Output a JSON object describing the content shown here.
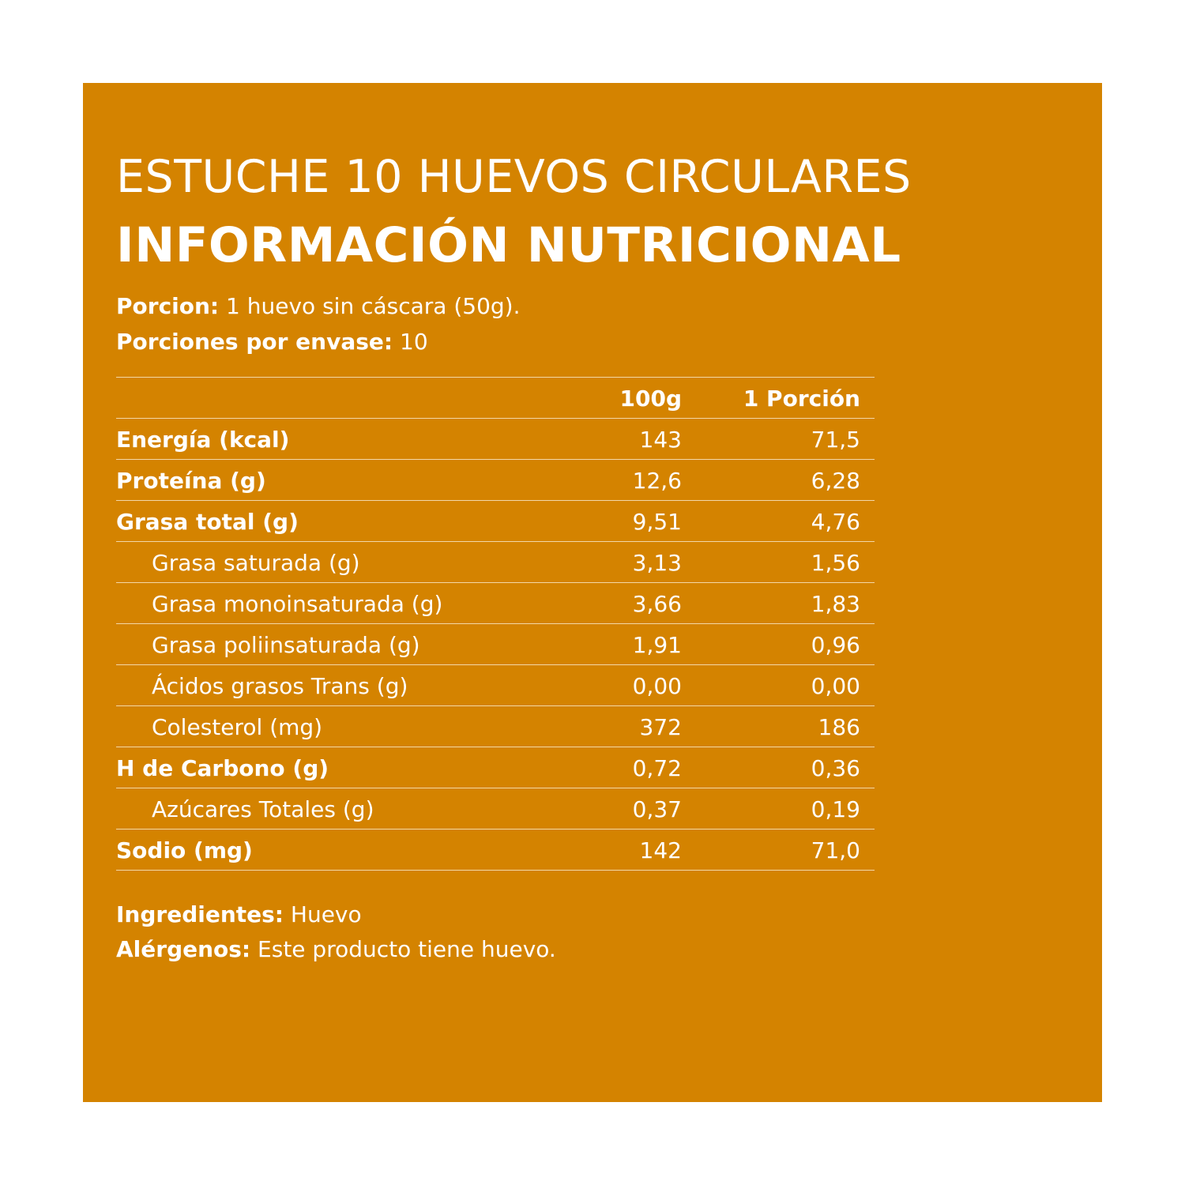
{
  "header": {
    "product_title": "ESTUCHE 10 HUEVOS CIRCULARES",
    "section_title": "INFORMACIÓN NUTRICIONAL"
  },
  "serving": {
    "portion_label": "Porcion:",
    "portion_value": " 1 huevo sin cáscara (50g).",
    "per_pack_label": "Porciones por envase:",
    "per_pack_value": " 10"
  },
  "table": {
    "headers": {
      "label": "",
      "col_a": "100g",
      "col_b": "1 Porción"
    },
    "rows": [
      {
        "label": "Energía (kcal)",
        "a": "143",
        "b": "71,5"
      },
      {
        "label": "Proteína (g)",
        "a": "12,6",
        "b": "6,28"
      },
      {
        "label": "Grasa total (g)",
        "a": "9,51",
        "b": "4,76"
      },
      {
        "label": "Grasa saturada (g)",
        "a": "3,13",
        "b": "1,56"
      },
      {
        "label": "Grasa monoinsaturada (g)",
        "a": "3,66",
        "b": "1,83"
      },
      {
        "label": "Grasa poliinsaturada (g)",
        "a": "1,91",
        "b": "0,96"
      },
      {
        "label": "Ácidos grasos Trans (g)",
        "a": "0,00",
        "b": "0,00"
      },
      {
        "label": "Colesterol (mg)",
        "a": "372",
        "b": "186"
      },
      {
        "label": "H de Carbono (g)",
        "a": "0,72",
        "b": "0,36"
      },
      {
        "label": "Azúcares Totales (g)",
        "a": "0,37",
        "b": "0,19"
      },
      {
        "label": "Sodio (mg)",
        "a": "142",
        "b": "71,0"
      }
    ]
  },
  "footer": {
    "ingredients_label": "Ingredientes:",
    "ingredients_value": " Huevo",
    "allergens_label": "Alérgenos:",
    "allergens_value": " Este producto tiene huevo."
  },
  "colors": {
    "panel_background": "#d48300",
    "text": "#ffffff",
    "rule": "#f3d7a8"
  }
}
